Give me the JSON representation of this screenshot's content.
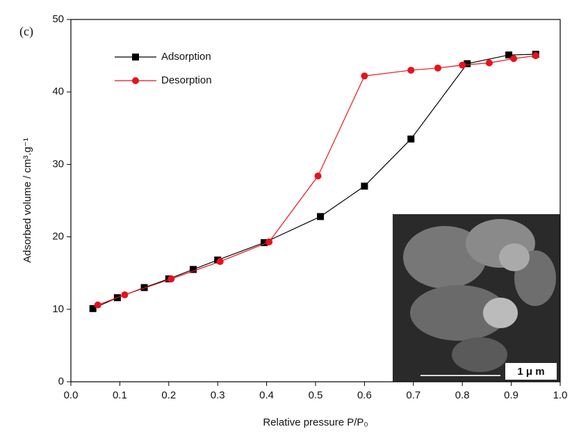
{
  "chart_data": {
    "type": "line",
    "panel_label": "(c)",
    "xlabel": "Relative pressure P/P₀",
    "ylabel": "Adsorbed volume / cm³.g⁻¹",
    "xlim": [
      0.0,
      1.0
    ],
    "xticks": [
      {
        "value": 0.0,
        "label": "0.0"
      },
      0.1,
      0.2,
      0.3,
      0.4,
      0.5,
      0.6,
      0.7,
      0.8,
      0.9,
      {
        "value": 1.0,
        "label": "1.0"
      }
    ],
    "ylim": [
      0,
      50
    ],
    "yticks": [
      0,
      10,
      20,
      30,
      40,
      50
    ],
    "legend": "upper left",
    "series": [
      {
        "name": "Adsorption",
        "color": "#000000",
        "marker": "square",
        "x": [
          0.045,
          0.095,
          0.15,
          0.2,
          0.25,
          0.3,
          0.395,
          0.51,
          0.6,
          0.695,
          0.81,
          0.895,
          0.95
        ],
        "values": [
          10.1,
          11.6,
          13.0,
          14.2,
          15.5,
          16.8,
          19.2,
          22.8,
          27.0,
          33.5,
          43.9,
          45.1,
          45.2
        ]
      },
      {
        "name": "Desorption",
        "color": "#e8121b",
        "marker": "circle",
        "x": [
          0.055,
          0.11,
          0.205,
          0.305,
          0.405,
          0.505,
          0.6,
          0.695,
          0.75,
          0.8,
          0.855,
          0.905,
          0.95
        ],
        "values": [
          10.6,
          12.0,
          14.2,
          16.6,
          19.3,
          28.4,
          42.2,
          43.0,
          43.3,
          43.7,
          44.0,
          44.6,
          45.0
        ]
      }
    ],
    "inset_label": "1 μ m"
  }
}
